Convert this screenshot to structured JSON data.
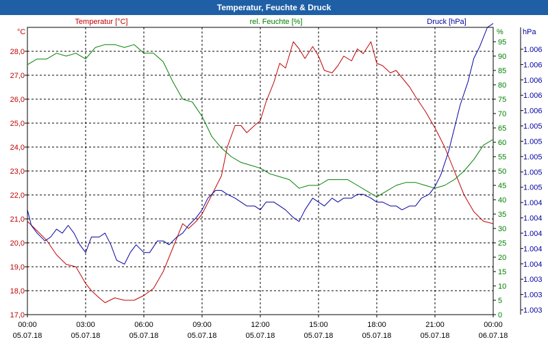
{
  "window": {
    "title": "Temperatur, Feuchte & Druck"
  },
  "chart_data": {
    "type": "line",
    "title": "Temperatur, Feuchte & Druck",
    "x_ticks": [
      {
        "time": "00:00",
        "date": "05.07.18"
      },
      {
        "time": "03:00",
        "date": "05.07.18"
      },
      {
        "time": "06:00",
        "date": "05.07.18"
      },
      {
        "time": "09:00",
        "date": "05.07.18"
      },
      {
        "time": "12:00",
        "date": "05.07.18"
      },
      {
        "time": "15:00",
        "date": "05.07.18"
      },
      {
        "time": "18:00",
        "date": "05.07.18"
      },
      {
        "time": "21:00",
        "date": "05.07.18"
      },
      {
        "time": "00:00",
        "date": "06.07.18"
      }
    ],
    "xlim": [
      0,
      24
    ],
    "grid": true,
    "axes": {
      "temperature": {
        "label": "Temperatur [°C]",
        "unit": "°C",
        "color": "#c00000",
        "ylim": [
          17,
          29
        ],
        "ticks": [
          "17,0",
          "18,0",
          "19,0",
          "20,0",
          "21,0",
          "22,0",
          "23,0",
          "24,0",
          "25,0",
          "26,0",
          "27,0",
          "28,0"
        ]
      },
      "humidity": {
        "label": "rel. Feuchte [%]",
        "unit": "%",
        "color": "#008000",
        "ylim": [
          0,
          100
        ],
        "ticks": [
          "0",
          "5",
          "10",
          "15",
          "20",
          "25",
          "30",
          "35",
          "40",
          "45",
          "50",
          "55",
          "60",
          "65",
          "70",
          "75",
          "80",
          "85",
          "90",
          "95"
        ]
      },
      "pressure": {
        "label": "Druck [hPa]",
        "unit": "hPa",
        "color": "#0000a0",
        "ylim": [
          1002.8,
          1006.5
        ],
        "ticks": [
          "1.003",
          "1.003",
          "1.003",
          "1.004",
          "1.004",
          "1.004",
          "1.004",
          "1.004",
          "1.005",
          "1.005",
          "1.005",
          "1.005",
          "1.005",
          "1.006",
          "1.006",
          "1.006",
          "1.006",
          "1.006"
        ]
      }
    },
    "series": [
      {
        "name": "Temperatur",
        "axis": "temperature",
        "color": "#c00000",
        "x": [
          0,
          0.5,
          1,
          1.5,
          2,
          2.5,
          3,
          3.3,
          3.7,
          4,
          4.5,
          5,
          5.5,
          6,
          6.5,
          7,
          7.5,
          8,
          8.3,
          8.7,
          9,
          9.5,
          10,
          10.3,
          10.7,
          11,
          11.3,
          11.7,
          12,
          12.3,
          12.7,
          13,
          13.3,
          13.7,
          14,
          14.3,
          14.7,
          15,
          15.3,
          15.7,
          16,
          16.3,
          16.7,
          17,
          17.3,
          17.7,
          18,
          18.3,
          18.7,
          19,
          19.3,
          19.7,
          20,
          20.5,
          21,
          21.5,
          22,
          22.5,
          23,
          23.5,
          24
        ],
        "values": [
          20.9,
          20.5,
          20.1,
          19.5,
          19.1,
          19.0,
          18.3,
          18.0,
          17.7,
          17.5,
          17.7,
          17.6,
          17.6,
          17.8,
          18.1,
          18.8,
          19.8,
          20.8,
          20.6,
          20.9,
          21.2,
          22.0,
          22.8,
          24.0,
          24.9,
          24.9,
          24.6,
          24.9,
          25.1,
          25.9,
          26.7,
          27.5,
          27.3,
          28.4,
          28.1,
          27.7,
          28.2,
          27.8,
          27.2,
          27.1,
          27.4,
          27.8,
          27.6,
          28.1,
          27.9,
          28.4,
          27.5,
          27.4,
          27.1,
          27.2,
          26.9,
          26.5,
          26.1,
          25.5,
          24.8,
          24.0,
          23.0,
          22.0,
          21.3,
          20.9,
          20.8
        ]
      },
      {
        "name": "rel. Feuchte",
        "axis": "humidity",
        "color": "#008000",
        "x": [
          0,
          0.5,
          1,
          1.5,
          2,
          2.5,
          3,
          3.5,
          4,
          4.5,
          5,
          5.5,
          6,
          6.5,
          7,
          7.5,
          8,
          8.5,
          9,
          9.5,
          10,
          10.5,
          11,
          11.5,
          12,
          12.5,
          13,
          13.5,
          14,
          14.5,
          15,
          15.5,
          16,
          16.5,
          17,
          17.5,
          18,
          18.5,
          19,
          19.5,
          20,
          20.5,
          21,
          21.5,
          22,
          22.5,
          23,
          23.5,
          24
        ],
        "values": [
          87,
          89,
          89,
          91,
          90,
          91,
          89,
          93,
          94,
          94,
          93,
          94,
          91,
          91,
          88,
          81,
          75,
          74,
          69,
          62,
          58,
          55,
          53,
          52,
          51,
          49,
          48,
          47,
          44,
          45,
          45,
          47,
          47,
          47,
          45,
          43,
          41,
          43,
          45,
          46,
          46,
          45,
          44,
          45,
          47,
          50,
          54,
          59,
          61
        ]
      },
      {
        "name": "Druck",
        "axis": "pressure",
        "color": "#0000a0",
        "x": [
          0,
          0.2,
          0.5,
          0.9,
          1.2,
          1.5,
          1.8,
          2.1,
          2.4,
          2.7,
          3,
          3.3,
          3.7,
          4,
          4.3,
          4.6,
          5,
          5.3,
          5.6,
          6,
          6.3,
          6.7,
          7,
          7.3,
          7.7,
          8,
          8.3,
          8.7,
          9,
          9.3,
          9.7,
          10,
          10.3,
          10.7,
          11,
          11.3,
          11.7,
          12,
          12.3,
          12.7,
          13,
          13.3,
          13.7,
          14,
          14.3,
          14.7,
          15,
          15.3,
          15.7,
          16,
          16.3,
          16.7,
          17,
          17.3,
          17.7,
          18,
          18.3,
          18.7,
          19,
          19.3,
          19.7,
          20,
          20.3,
          20.7,
          21,
          21.3,
          21.7,
          22,
          22.3,
          22.7,
          23,
          23.3,
          23.7,
          24
        ],
        "values": [
          1004.15,
          1003.95,
          1003.85,
          1003.75,
          1003.8,
          1003.9,
          1003.85,
          1003.95,
          1003.85,
          1003.7,
          1003.6,
          1003.8,
          1003.8,
          1003.85,
          1003.7,
          1003.5,
          1003.45,
          1003.6,
          1003.7,
          1003.6,
          1003.6,
          1003.75,
          1003.75,
          1003.7,
          1003.8,
          1003.85,
          1003.95,
          1004.05,
          1004.15,
          1004.3,
          1004.4,
          1004.4,
          1004.35,
          1004.3,
          1004.25,
          1004.2,
          1004.2,
          1004.15,
          1004.25,
          1004.25,
          1004.2,
          1004.15,
          1004.05,
          1004.0,
          1004.15,
          1004.3,
          1004.25,
          1004.2,
          1004.3,
          1004.25,
          1004.3,
          1004.3,
          1004.35,
          1004.35,
          1004.3,
          1004.25,
          1004.25,
          1004.2,
          1004.2,
          1004.15,
          1004.2,
          1004.2,
          1004.3,
          1004.35,
          1004.45,
          1004.6,
          1004.9,
          1005.2,
          1005.5,
          1005.8,
          1006.1,
          1006.25,
          1006.5,
          1006.55
        ]
      }
    ]
  }
}
